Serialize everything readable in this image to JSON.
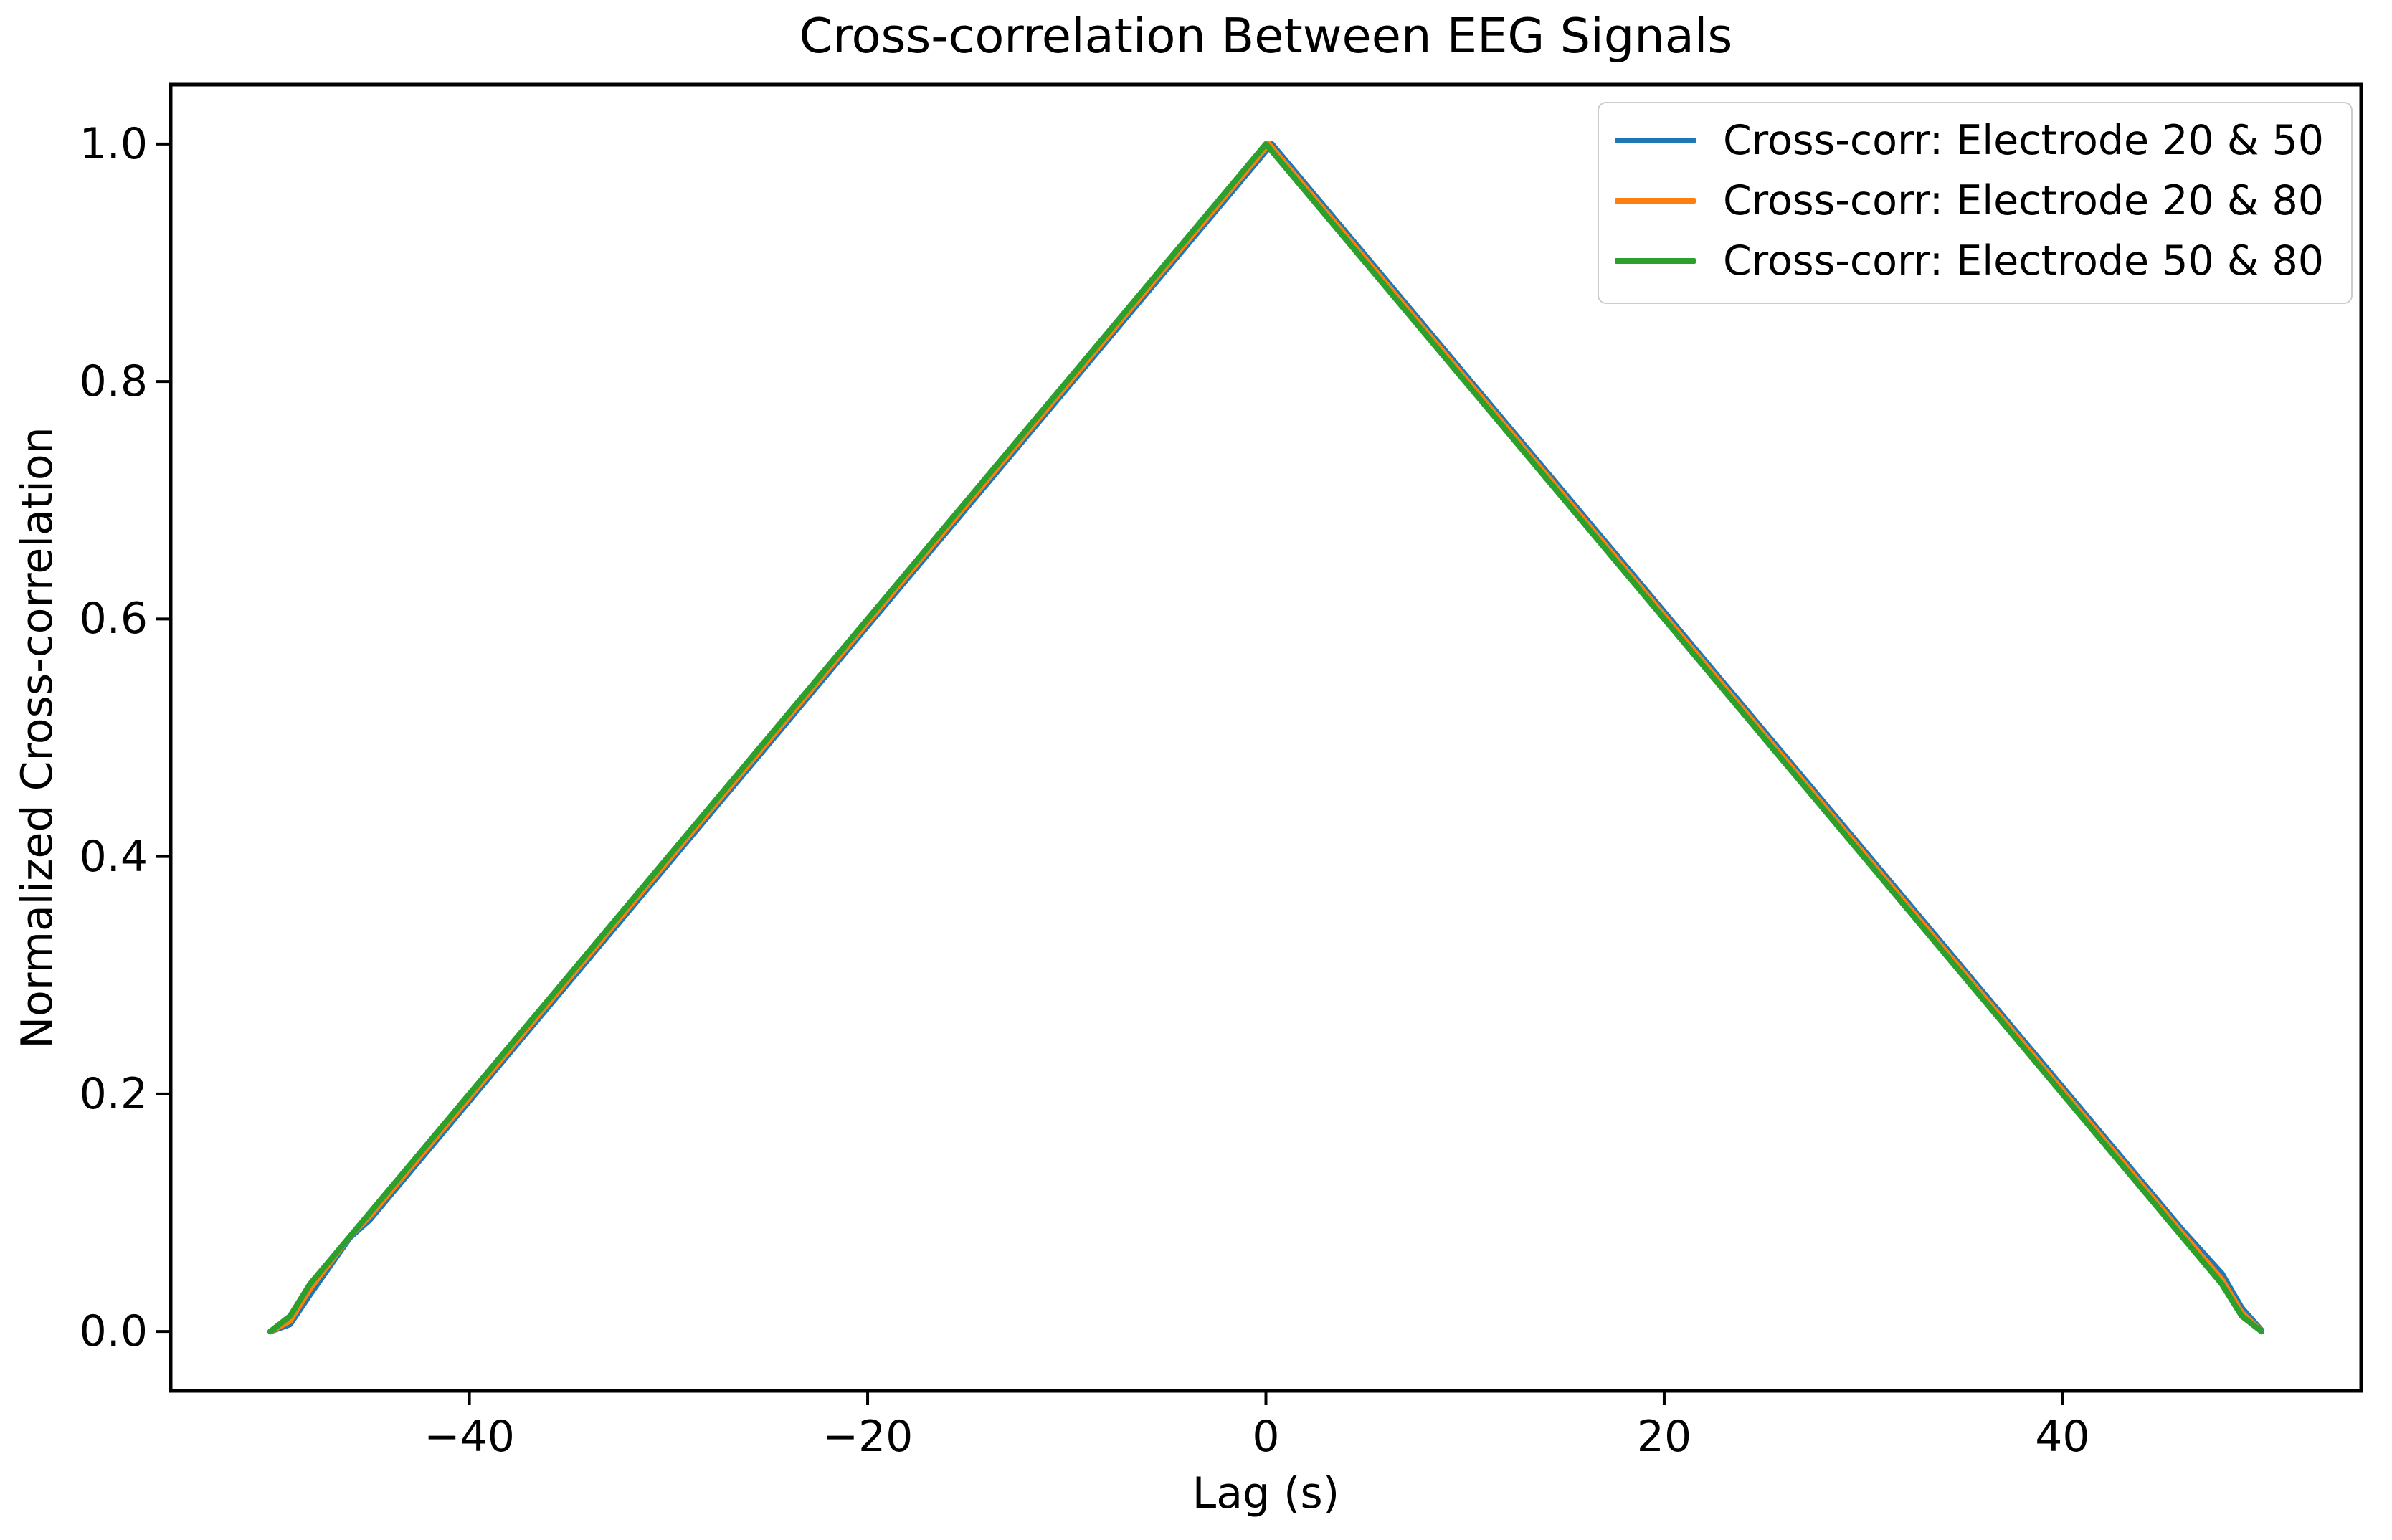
{
  "chart_data": {
    "type": "line",
    "title": "Cross-correlation Between EEG Signals",
    "xlabel": "Lag (s)",
    "ylabel": "Normalized Cross-correlation",
    "xlim": [
      -55,
      55
    ],
    "ylim": [
      -0.05,
      1.05
    ],
    "grid": false,
    "legend_position": "upper right",
    "x_ticks": {
      "values": [
        -40,
        -20,
        0,
        20,
        40
      ],
      "labels": [
        "−40",
        "−20",
        "0",
        "20",
        "40"
      ]
    },
    "y_ticks": {
      "values": [
        0.0,
        0.2,
        0.4,
        0.6,
        0.8,
        1.0
      ],
      "labels": [
        "0.0",
        "0.2",
        "0.4",
        "0.6",
        "0.8",
        "1.0"
      ]
    },
    "x": [
      -50,
      -49,
      -48,
      -46,
      -45,
      -40,
      -35,
      -30,
      -25,
      -20,
      -15,
      -10,
      -5,
      -2,
      0,
      0.15,
      0.3,
      2,
      5,
      10,
      15,
      20,
      25,
      30,
      35,
      40,
      45,
      46,
      48,
      49,
      50
    ],
    "series": [
      {
        "name": "Cross-corr: Electrode 20 & 50",
        "color": "#1f77b4",
        "values": [
          0,
          0.006,
          0.031,
          0.079,
          0.094,
          0.194,
          0.294,
          0.394,
          0.494,
          0.594,
          0.694,
          0.794,
          0.894,
          0.954,
          0.994,
          0.997,
          1.0,
          0.966,
          0.906,
          0.806,
          0.706,
          0.606,
          0.506,
          0.406,
          0.306,
          0.206,
          0.106,
          0.086,
          0.049,
          0.02,
          0.001
        ]
      },
      {
        "name": "Cross-corr: Electrode 20 & 80",
        "color": "#ff7f0e",
        "values": [
          0,
          0.009,
          0.036,
          0.08,
          0.097,
          0.197,
          0.297,
          0.397,
          0.497,
          0.597,
          0.697,
          0.797,
          0.897,
          0.957,
          0.997,
          1.0,
          0.997,
          0.963,
          0.903,
          0.803,
          0.703,
          0.603,
          0.503,
          0.403,
          0.303,
          0.203,
          0.103,
          0.083,
          0.044,
          0.016,
          0
        ]
      },
      {
        "name": "Cross-corr: Electrode 50 & 80",
        "color": "#2ca02c",
        "values": [
          0,
          0.013,
          0.04,
          0.08,
          0.1,
          0.2,
          0.3,
          0.4,
          0.5,
          0.6,
          0.7,
          0.8,
          0.9,
          0.96,
          1.0,
          0.997,
          0.994,
          0.96,
          0.9,
          0.8,
          0.7,
          0.6,
          0.5,
          0.4,
          0.3,
          0.2,
          0.1,
          0.08,
          0.04,
          0.013,
          0
        ]
      }
    ]
  },
  "colors": {
    "background": "#ffffff",
    "spine": "#000000",
    "tick": "#000000",
    "text": "#000000",
    "legend_border": "#cccccc"
  }
}
